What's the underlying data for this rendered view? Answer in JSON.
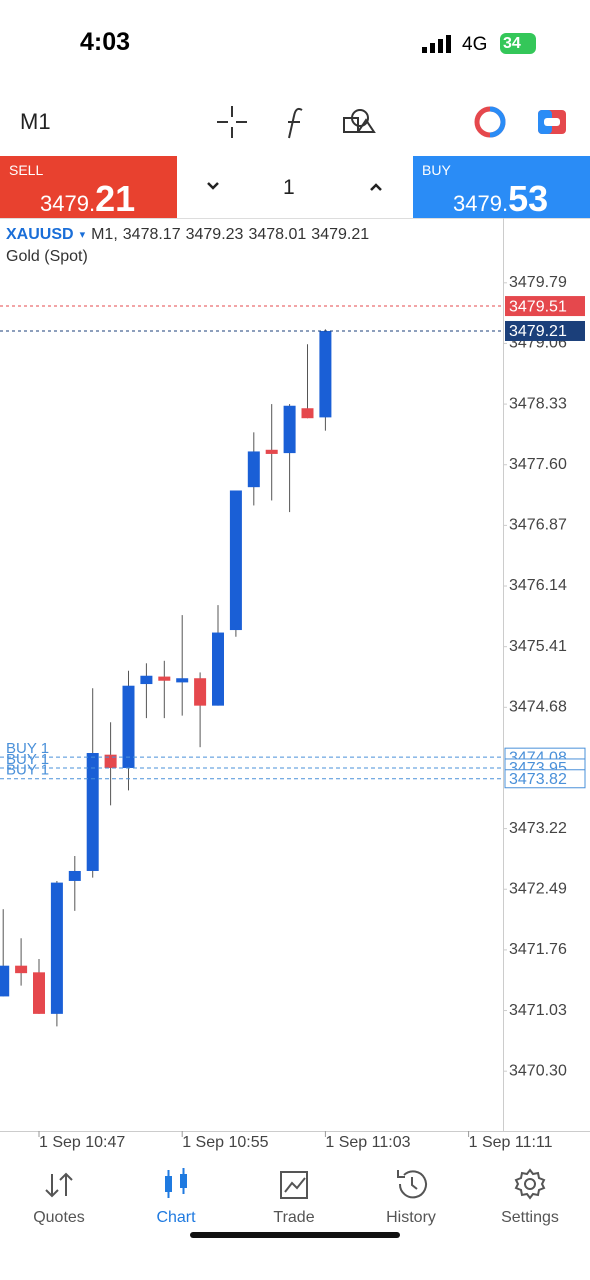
{
  "status_bar": {
    "time": "4:03",
    "network": "4G",
    "battery": "34"
  },
  "toolbar": {
    "timeframe": "M1"
  },
  "trade_panel": {
    "sell": {
      "label": "SELL",
      "price_prefix": "3479.",
      "price_big": "21"
    },
    "quantity": "1",
    "buy": {
      "label": "BUY",
      "price_prefix": "3479.",
      "price_big": "53"
    }
  },
  "chart_data": {
    "type": "candlestick",
    "symbol": "XAUUSD",
    "timeframe_label": "M1,",
    "description": "Gold (Spot)",
    "up_color": "#1a5fd6",
    "down_color": "#e5484d",
    "categories": [
      null,
      null,
      "1 Sep 10:47",
      null,
      null,
      null,
      null,
      null,
      null,
      null,
      "1 Sep 10:55",
      null,
      null,
      null,
      null,
      null,
      null,
      null,
      "1 Sep 11:03",
      null,
      null,
      null,
      null,
      null,
      null,
      null,
      "1 Sep 11:11"
    ],
    "open": [
      3471.2,
      3471.57,
      3471.49,
      3470.99,
      3472.59,
      3472.71,
      3474.11,
      3473.95,
      3474.96,
      3475.05,
      3474.98,
      3475.03,
      3474.7,
      3475.61,
      3477.33,
      3477.78,
      3477.74,
      3478.28,
      3478.17,
      null,
      null,
      null,
      null,
      null,
      null,
      null,
      null
    ],
    "high": [
      3472.25,
      3471.9,
      3471.65,
      3472.59,
      3472.89,
      3474.91,
      3474.5,
      3475.12,
      3475.21,
      3475.24,
      3475.79,
      3475.1,
      3475.91,
      3477.29,
      3477.99,
      3478.33,
      3478.33,
      3479.05,
      3479.23,
      null,
      null,
      null,
      null,
      null,
      null,
      null,
      null
    ],
    "low": [
      3471.2,
      3471.33,
      3470.99,
      3470.84,
      3472.23,
      3472.63,
      3473.5,
      3473.68,
      3474.55,
      3474.55,
      3474.58,
      3474.2,
      3474.7,
      3475.53,
      3477.11,
      3477.17,
      3477.03,
      3478.16,
      3478.01,
      null,
      null,
      null,
      null,
      null,
      null,
      null,
      null
    ],
    "close": [
      3471.57,
      3471.48,
      3470.99,
      3472.57,
      3472.71,
      3474.13,
      3473.95,
      3474.94,
      3475.06,
      3475.0,
      3475.03,
      3474.7,
      3475.58,
      3477.29,
      3477.76,
      3477.73,
      3478.31,
      3478.16,
      3479.21,
      null,
      null,
      null,
      null,
      null,
      null,
      null,
      null
    ],
    "ylim": [
      3469.58,
      3480.57
    ],
    "yticks": [
      3479.79,
      3479.06,
      3478.33,
      {
        "value": 3477.6,
        "label": "3477.60"
      },
      3476.87,
      3476.14,
      3475.41,
      3474.68,
      3473.22,
      3472.49,
      3471.76,
      3471.03,
      {
        "value": 3470.3,
        "label": "3470.30"
      }
    ],
    "price_lines": [
      {
        "price": 3479.51,
        "color": "#e5484d"
      },
      {
        "price": 3479.21,
        "color": "#1b3f7a"
      }
    ],
    "orders": [
      {
        "label": "BUY 1",
        "price": 3474.08,
        "color": "#4a90d9"
      },
      {
        "label": "BUY 1",
        "price": 3473.95,
        "color": "#4a90d9"
      },
      {
        "label": "BUY 1",
        "price": 3473.82,
        "color": "#4a90d9"
      }
    ]
  },
  "nav": {
    "items": [
      "Quotes",
      "Chart",
      "Trade",
      "History",
      "Settings"
    ],
    "active": 1
  }
}
